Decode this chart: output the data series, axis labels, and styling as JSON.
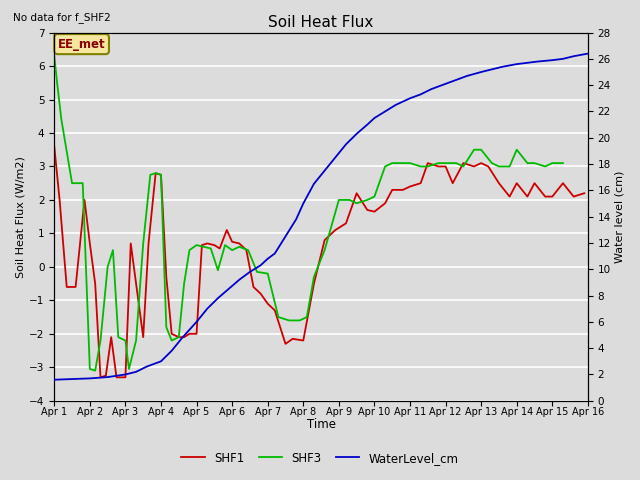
{
  "title": "Soil Heat Flux",
  "subtitle": "No data for f_SHF2",
  "xlabel": "Time",
  "ylabel_left": "Soil Heat Flux (W/m2)",
  "ylabel_right": "Water level (cm)",
  "annotation": "EE_met",
  "ylim_left": [
    -4.0,
    7.0
  ],
  "ylim_right": [
    0,
    28
  ],
  "yticks_left": [
    -4.0,
    -3.0,
    -2.0,
    -1.0,
    0.0,
    1.0,
    2.0,
    3.0,
    4.0,
    5.0,
    6.0,
    7.0
  ],
  "yticks_right": [
    0,
    2,
    4,
    6,
    8,
    10,
    12,
    14,
    16,
    18,
    20,
    22,
    24,
    26,
    28
  ],
  "xtick_labels": [
    "Apr 1",
    "Apr 2",
    "Apr 3",
    "Apr 4",
    "Apr 5",
    "Apr 6",
    "Apr 7",
    "Apr 8",
    "Apr 9",
    "Apr 10",
    "Apr 11",
    "Apr 12",
    "Apr 13",
    "Apr 14",
    "Apr 15",
    "Apr 16"
  ],
  "background_color": "#dcdcdc",
  "grid_color": "#ffffff",
  "shf1_color": "#cc0000",
  "shf3_color": "#00bb00",
  "water_color": "#0000cc",
  "legend_labels": [
    "SHF1",
    "SHF3",
    "WaterLevel_cm"
  ],
  "shf1_x": [
    1.0,
    1.15,
    1.35,
    1.6,
    1.85,
    2.0,
    2.15,
    2.3,
    2.45,
    2.6,
    2.75,
    3.0,
    3.15,
    3.3,
    3.5,
    3.65,
    3.85,
    4.0,
    4.15,
    4.3,
    4.5,
    4.65,
    4.8,
    5.0,
    5.15,
    5.3,
    5.5,
    5.65,
    5.85,
    6.0,
    6.2,
    6.4,
    6.6,
    6.8,
    7.0,
    7.2,
    7.5,
    7.7,
    8.0,
    8.3,
    8.6,
    8.9,
    9.2,
    9.5,
    9.8,
    10.0,
    10.3,
    10.5,
    10.8,
    11.0,
    11.3,
    11.5,
    11.8,
    12.0,
    12.2,
    12.5,
    12.8,
    13.0,
    13.2,
    13.5,
    13.8,
    14.0,
    14.3,
    14.5,
    14.8,
    15.0,
    15.3,
    15.6,
    15.9
  ],
  "shf1_y": [
    3.6,
    2.0,
    -0.6,
    -0.6,
    2.0,
    0.7,
    -0.5,
    -3.3,
    -3.25,
    -2.1,
    -3.3,
    -3.3,
    0.7,
    -0.5,
    -2.1,
    0.7,
    2.8,
    2.75,
    -0.3,
    -2.0,
    -2.1,
    -2.1,
    -2.0,
    -2.0,
    0.65,
    0.7,
    0.65,
    0.55,
    1.1,
    0.75,
    0.7,
    0.5,
    -0.6,
    -0.8,
    -1.1,
    -1.3,
    -2.3,
    -2.15,
    -2.2,
    -0.5,
    0.8,
    1.1,
    1.3,
    2.2,
    1.7,
    1.65,
    1.9,
    2.3,
    2.3,
    2.4,
    2.5,
    3.1,
    3.0,
    3.0,
    2.5,
    3.1,
    3.0,
    3.1,
    3.0,
    2.5,
    2.1,
    2.5,
    2.1,
    2.5,
    2.1,
    2.1,
    2.5,
    2.1,
    2.2
  ],
  "shf3_x": [
    1.0,
    1.08,
    1.2,
    1.5,
    1.8,
    2.0,
    2.15,
    2.3,
    2.5,
    2.65,
    2.8,
    3.0,
    3.1,
    3.3,
    3.5,
    3.7,
    3.85,
    4.0,
    4.15,
    4.3,
    4.5,
    4.65,
    4.8,
    5.0,
    5.2,
    5.4,
    5.6,
    5.8,
    6.0,
    6.2,
    6.45,
    6.7,
    7.0,
    7.3,
    7.6,
    7.9,
    8.1,
    8.3,
    8.6,
    9.0,
    9.3,
    9.5,
    9.8,
    10.0,
    10.3,
    10.5,
    10.8,
    11.0,
    11.3,
    11.5,
    11.8,
    12.0,
    12.3,
    12.5,
    12.8,
    13.0,
    13.3,
    13.5,
    13.8,
    14.0,
    14.3,
    14.5,
    14.8,
    15.0,
    15.3
  ],
  "shf3_y": [
    6.3,
    5.5,
    4.4,
    2.5,
    2.5,
    -3.05,
    -3.1,
    -2.2,
    0.0,
    0.5,
    -2.1,
    -2.2,
    -3.05,
    -2.2,
    0.7,
    2.75,
    2.8,
    2.75,
    -1.8,
    -2.2,
    -2.1,
    -0.5,
    0.5,
    0.65,
    0.6,
    0.55,
    -0.1,
    0.65,
    0.5,
    0.6,
    0.5,
    -0.15,
    -0.2,
    -1.5,
    -1.6,
    -1.6,
    -1.5,
    -0.3,
    0.5,
    2.0,
    2.0,
    1.9,
    2.0,
    2.1,
    3.0,
    3.1,
    3.1,
    3.1,
    3.0,
    3.0,
    3.1,
    3.1,
    3.1,
    3.0,
    3.5,
    3.5,
    3.1,
    3.0,
    3.0,
    3.5,
    3.1,
    3.1,
    3.0,
    3.1,
    3.1
  ],
  "water_x": [
    1.0,
    1.5,
    2.0,
    2.5,
    3.0,
    3.3,
    3.6,
    4.0,
    4.3,
    4.6,
    5.0,
    5.3,
    5.6,
    5.9,
    6.2,
    6.5,
    6.8,
    7.0,
    7.2,
    7.5,
    7.8,
    8.0,
    8.3,
    8.6,
    8.9,
    9.2,
    9.5,
    9.8,
    10.0,
    10.3,
    10.6,
    11.0,
    11.3,
    11.6,
    12.0,
    12.3,
    12.6,
    13.0,
    13.3,
    13.6,
    14.0,
    14.3,
    14.6,
    15.0,
    15.3,
    15.6,
    16.0
  ],
  "water_y": [
    1.6,
    1.65,
    1.7,
    1.8,
    2.0,
    2.2,
    2.6,
    3.0,
    3.8,
    4.8,
    6.0,
    7.0,
    7.8,
    8.5,
    9.2,
    9.8,
    10.3,
    10.8,
    11.2,
    12.5,
    13.8,
    15.0,
    16.5,
    17.5,
    18.5,
    19.5,
    20.3,
    21.0,
    21.5,
    22.0,
    22.5,
    23.0,
    23.3,
    23.7,
    24.1,
    24.4,
    24.7,
    25.0,
    25.2,
    25.4,
    25.6,
    25.7,
    25.8,
    25.9,
    26.0,
    26.2,
    26.4
  ]
}
